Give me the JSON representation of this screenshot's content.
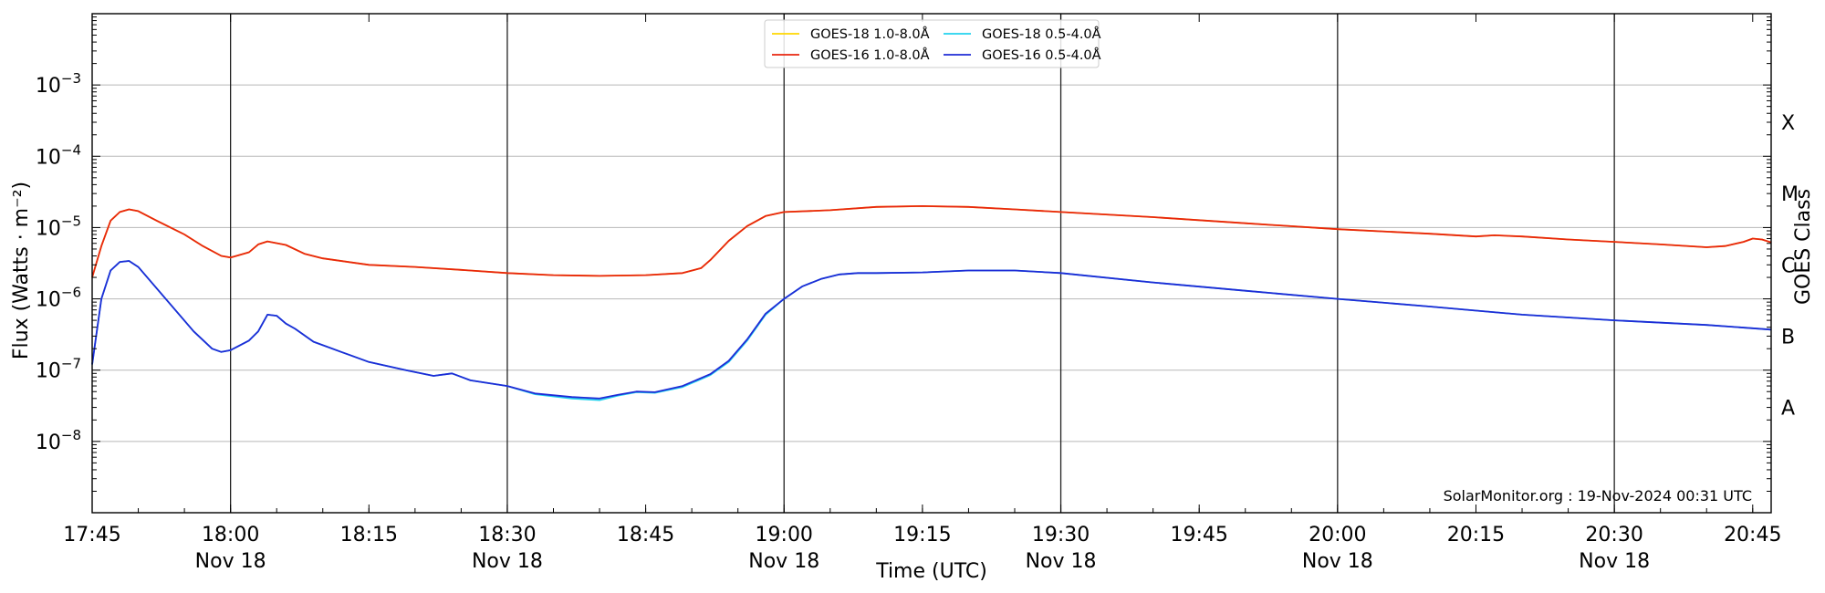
{
  "chart_data": {
    "type": "line",
    "xlabel": "Time (UTC)",
    "ylabel": "Flux (Watts · m⁻²)",
    "ylabel_right": "GOES Class",
    "yscale": "log",
    "ylim": [
      1e-09,
      0.01
    ],
    "xlim": [
      "17:45",
      "20:47"
    ],
    "grid": "horizontal",
    "legend_position": "top-center",
    "credit": "SolarMonitor.org : 19-Nov-2024 00:31 UTC",
    "x_ticks": [
      {
        "time": "17:45",
        "label": "17:45",
        "date": ""
      },
      {
        "time": "18:00",
        "label": "18:00",
        "date": "Nov 18"
      },
      {
        "time": "18:15",
        "label": "18:15",
        "date": ""
      },
      {
        "time": "18:30",
        "label": "18:30",
        "date": "Nov 18"
      },
      {
        "time": "18:45",
        "label": "18:45",
        "date": ""
      },
      {
        "time": "19:00",
        "label": "19:00",
        "date": "Nov 18"
      },
      {
        "time": "19:15",
        "label": "19:15",
        "date": ""
      },
      {
        "time": "19:30",
        "label": "19:30",
        "date": "Nov 18"
      },
      {
        "time": "19:45",
        "label": "19:45",
        "date": ""
      },
      {
        "time": "20:00",
        "label": "20:00",
        "date": "Nov 18"
      },
      {
        "time": "20:15",
        "label": "20:15",
        "date": ""
      },
      {
        "time": "20:30",
        "label": "20:30",
        "date": "Nov 18"
      },
      {
        "time": "20:45",
        "label": "20:45",
        "date": ""
      }
    ],
    "vlines": [
      "18:00",
      "18:30",
      "19:00",
      "19:30",
      "20:00",
      "20:30"
    ],
    "y_ticks": [
      {
        "value": 0.001,
        "exp": "−3"
      },
      {
        "value": 0.0001,
        "exp": "−4"
      },
      {
        "value": 1e-05,
        "exp": "−5"
      },
      {
        "value": 1e-06,
        "exp": "−6"
      },
      {
        "value": 1e-07,
        "exp": "−7"
      },
      {
        "value": 1e-08,
        "exp": "−8"
      }
    ],
    "goes_classes": [
      {
        "label": "X",
        "value": 0.0003
      },
      {
        "label": "M",
        "value": 3e-05
      },
      {
        "label": "C",
        "value": 3e-06
      },
      {
        "label": "B",
        "value": 3e-07
      },
      {
        "label": "A",
        "value": 3e-08
      }
    ],
    "series": [
      {
        "name": "GOES-18 1.0-8.0Å",
        "color": "#ffd700",
        "points": [
          [
            "17:45",
            2e-06
          ],
          [
            "17:46",
            5.5e-06
          ],
          [
            "17:47",
            1.25e-05
          ],
          [
            "17:48",
            1.65e-05
          ],
          [
            "17:49",
            1.8e-05
          ],
          [
            "17:50",
            1.7e-05
          ],
          [
            "17:52",
            1.25e-05
          ],
          [
            "17:55",
            8e-06
          ],
          [
            "17:57",
            5.5e-06
          ],
          [
            "17:59",
            4e-06
          ],
          [
            "18:00",
            3.8e-06
          ],
          [
            "18:02",
            4.5e-06
          ],
          [
            "18:03",
            5.8e-06
          ],
          [
            "18:04",
            6.4e-06
          ],
          [
            "18:06",
            5.7e-06
          ],
          [
            "18:08",
            4.3e-06
          ],
          [
            "18:10",
            3.7e-06
          ],
          [
            "18:15",
            3e-06
          ],
          [
            "18:20",
            2.8e-06
          ],
          [
            "18:25",
            2.55e-06
          ],
          [
            "18:30",
            2.3e-06
          ],
          [
            "18:35",
            2.15e-06
          ],
          [
            "18:40",
            2.1e-06
          ],
          [
            "18:45",
            2.15e-06
          ],
          [
            "18:49",
            2.3e-06
          ],
          [
            "18:51",
            2.7e-06
          ],
          [
            "18:52",
            3.5e-06
          ],
          [
            "18:54",
            6.5e-06
          ],
          [
            "18:56",
            1.05e-05
          ],
          [
            "18:58",
            1.45e-05
          ],
          [
            "19:00",
            1.65e-05
          ],
          [
            "19:05",
            1.75e-05
          ],
          [
            "19:10",
            1.95e-05
          ],
          [
            "19:15",
            2e-05
          ],
          [
            "19:20",
            1.95e-05
          ],
          [
            "19:25",
            1.8e-05
          ],
          [
            "19:30",
            1.65e-05
          ],
          [
            "19:40",
            1.4e-05
          ],
          [
            "19:50",
            1.15e-05
          ],
          [
            "20:00",
            9.5e-06
          ],
          [
            "20:10",
            8.2e-06
          ],
          [
            "20:15",
            7.5e-06
          ],
          [
            "20:17",
            7.8e-06
          ],
          [
            "20:20",
            7.5e-06
          ],
          [
            "20:25",
            6.8e-06
          ],
          [
            "20:30",
            6.3e-06
          ],
          [
            "20:35",
            5.8e-06
          ],
          [
            "20:40",
            5.3e-06
          ],
          [
            "20:42",
            5.5e-06
          ],
          [
            "20:44",
            6.3e-06
          ],
          [
            "20:45",
            7e-06
          ],
          [
            "20:46",
            6.8e-06
          ],
          [
            "20:47",
            6.2e-06
          ]
        ]
      },
      {
        "name": "GOES-16 1.0-8.0Å",
        "color": "#e8260f",
        "points": [
          [
            "17:45",
            2e-06
          ],
          [
            "17:46",
            5.5e-06
          ],
          [
            "17:47",
            1.25e-05
          ],
          [
            "17:48",
            1.65e-05
          ],
          [
            "17:49",
            1.8e-05
          ],
          [
            "17:50",
            1.7e-05
          ],
          [
            "17:52",
            1.25e-05
          ],
          [
            "17:55",
            8e-06
          ],
          [
            "17:57",
            5.5e-06
          ],
          [
            "17:59",
            4e-06
          ],
          [
            "18:00",
            3.8e-06
          ],
          [
            "18:02",
            4.5e-06
          ],
          [
            "18:03",
            5.8e-06
          ],
          [
            "18:04",
            6.4e-06
          ],
          [
            "18:06",
            5.7e-06
          ],
          [
            "18:08",
            4.3e-06
          ],
          [
            "18:10",
            3.7e-06
          ],
          [
            "18:15",
            3e-06
          ],
          [
            "18:20",
            2.8e-06
          ],
          [
            "18:25",
            2.55e-06
          ],
          [
            "18:30",
            2.3e-06
          ],
          [
            "18:35",
            2.15e-06
          ],
          [
            "18:40",
            2.1e-06
          ],
          [
            "18:45",
            2.15e-06
          ],
          [
            "18:49",
            2.3e-06
          ],
          [
            "18:51",
            2.7e-06
          ],
          [
            "18:52",
            3.5e-06
          ],
          [
            "18:54",
            6.5e-06
          ],
          [
            "18:56",
            1.05e-05
          ],
          [
            "18:58",
            1.45e-05
          ],
          [
            "19:00",
            1.65e-05
          ],
          [
            "19:05",
            1.75e-05
          ],
          [
            "19:10",
            1.95e-05
          ],
          [
            "19:15",
            2e-05
          ],
          [
            "19:20",
            1.95e-05
          ],
          [
            "19:25",
            1.8e-05
          ],
          [
            "19:30",
            1.65e-05
          ],
          [
            "19:40",
            1.4e-05
          ],
          [
            "19:50",
            1.15e-05
          ],
          [
            "20:00",
            9.5e-06
          ],
          [
            "20:10",
            8.2e-06
          ],
          [
            "20:15",
            7.5e-06
          ],
          [
            "20:17",
            7.8e-06
          ],
          [
            "20:20",
            7.5e-06
          ],
          [
            "20:25",
            6.8e-06
          ],
          [
            "20:30",
            6.3e-06
          ],
          [
            "20:35",
            5.8e-06
          ],
          [
            "20:40",
            5.3e-06
          ],
          [
            "20:42",
            5.5e-06
          ],
          [
            "20:44",
            6.3e-06
          ],
          [
            "20:45",
            7e-06
          ],
          [
            "20:46",
            6.8e-06
          ],
          [
            "20:47",
            6.2e-06
          ]
        ]
      },
      {
        "name": "GOES-18 0.5-4.0Å",
        "color": "#22d3ee",
        "points": [
          [
            "17:45",
            1.2e-07
          ],
          [
            "17:46",
            1e-06
          ],
          [
            "17:47",
            2.5e-06
          ],
          [
            "17:48",
            3.3e-06
          ],
          [
            "17:49",
            3.4e-06
          ],
          [
            "17:50",
            2.8e-06
          ],
          [
            "17:52",
            1.4e-06
          ],
          [
            "17:54",
            7e-07
          ],
          [
            "17:56",
            3.5e-07
          ],
          [
            "17:58",
            2e-07
          ],
          [
            "17:59",
            1.8e-07
          ],
          [
            "18:00",
            1.9e-07
          ],
          [
            "18:02",
            2.6e-07
          ],
          [
            "18:03",
            3.5e-07
          ],
          [
            "18:04",
            6e-07
          ],
          [
            "18:05",
            5.8e-07
          ],
          [
            "18:06",
            4.5e-07
          ],
          [
            "18:07",
            3.8e-07
          ],
          [
            "18:09",
            2.5e-07
          ],
          [
            "18:12",
            1.8e-07
          ],
          [
            "18:15",
            1.3e-07
          ],
          [
            "18:19",
            1e-07
          ],
          [
            "18:22",
            8.3e-08
          ],
          [
            "18:24",
            9e-08
          ],
          [
            "18:26",
            7.2e-08
          ],
          [
            "18:30",
            6e-08
          ],
          [
            "18:33",
            4.6e-08
          ],
          [
            "18:37",
            4e-08
          ],
          [
            "18:40",
            3.8e-08
          ],
          [
            "18:42",
            4.4e-08
          ],
          [
            "18:44",
            4.9e-08
          ],
          [
            "18:46",
            4.8e-08
          ],
          [
            "18:49",
            5.8e-08
          ],
          [
            "18:52",
            8.5e-08
          ],
          [
            "18:54",
            1.3e-07
          ],
          [
            "18:56",
            2.6e-07
          ],
          [
            "18:58",
            6e-07
          ],
          [
            "19:00",
            1e-06
          ],
          [
            "19:02",
            1.5e-06
          ],
          [
            "19:04",
            1.9e-06
          ],
          [
            "19:06",
            2.2e-06
          ],
          [
            "19:08",
            2.3e-06
          ],
          [
            "19:10",
            2.3e-06
          ],
          [
            "19:15",
            2.35e-06
          ],
          [
            "19:20",
            2.5e-06
          ],
          [
            "19:25",
            2.5e-06
          ],
          [
            "19:30",
            2.3e-06
          ],
          [
            "19:40",
            1.7e-06
          ],
          [
            "19:50",
            1.3e-06
          ],
          [
            "20:00",
            1e-06
          ],
          [
            "20:10",
            7.8e-07
          ],
          [
            "20:20",
            6e-07
          ],
          [
            "20:30",
            5e-07
          ],
          [
            "20:40",
            4.3e-07
          ],
          [
            "20:47",
            3.7e-07
          ]
        ]
      },
      {
        "name": "GOES-16 0.5-4.0Å",
        "color": "#1f2bd6",
        "points": [
          [
            "17:45",
            1.2e-07
          ],
          [
            "17:46",
            1e-06
          ],
          [
            "17:47",
            2.5e-06
          ],
          [
            "17:48",
            3.3e-06
          ],
          [
            "17:49",
            3.4e-06
          ],
          [
            "17:50",
            2.8e-06
          ],
          [
            "17:52",
            1.4e-06
          ],
          [
            "17:54",
            7e-07
          ],
          [
            "17:56",
            3.5e-07
          ],
          [
            "17:58",
            2e-07
          ],
          [
            "17:59",
            1.8e-07
          ],
          [
            "18:00",
            1.9e-07
          ],
          [
            "18:02",
            2.6e-07
          ],
          [
            "18:03",
            3.5e-07
          ],
          [
            "18:04",
            6e-07
          ],
          [
            "18:05",
            5.8e-07
          ],
          [
            "18:06",
            4.5e-07
          ],
          [
            "18:07",
            3.8e-07
          ],
          [
            "18:09",
            2.5e-07
          ],
          [
            "18:12",
            1.8e-07
          ],
          [
            "18:15",
            1.3e-07
          ],
          [
            "18:19",
            1e-07
          ],
          [
            "18:22",
            8.3e-08
          ],
          [
            "18:24",
            9e-08
          ],
          [
            "18:26",
            7.2e-08
          ],
          [
            "18:30",
            6e-08
          ],
          [
            "18:33",
            4.7e-08
          ],
          [
            "18:37",
            4.2e-08
          ],
          [
            "18:40",
            4e-08
          ],
          [
            "18:42",
            4.5e-08
          ],
          [
            "18:44",
            5e-08
          ],
          [
            "18:46",
            4.9e-08
          ],
          [
            "18:49",
            6e-08
          ],
          [
            "18:52",
            8.8e-08
          ],
          [
            "18:54",
            1.35e-07
          ],
          [
            "18:56",
            2.7e-07
          ],
          [
            "18:58",
            6.2e-07
          ],
          [
            "19:00",
            1e-06
          ],
          [
            "19:02",
            1.5e-06
          ],
          [
            "19:04",
            1.9e-06
          ],
          [
            "19:06",
            2.2e-06
          ],
          [
            "19:08",
            2.3e-06
          ],
          [
            "19:10",
            2.3e-06
          ],
          [
            "19:15",
            2.35e-06
          ],
          [
            "19:20",
            2.5e-06
          ],
          [
            "19:25",
            2.5e-06
          ],
          [
            "19:30",
            2.3e-06
          ],
          [
            "19:40",
            1.7e-06
          ],
          [
            "19:50",
            1.3e-06
          ],
          [
            "20:00",
            1e-06
          ],
          [
            "20:10",
            7.8e-07
          ],
          [
            "20:20",
            6e-07
          ],
          [
            "20:30",
            5e-07
          ],
          [
            "20:40",
            4.3e-07
          ],
          [
            "20:47",
            3.7e-07
          ]
        ]
      }
    ]
  }
}
